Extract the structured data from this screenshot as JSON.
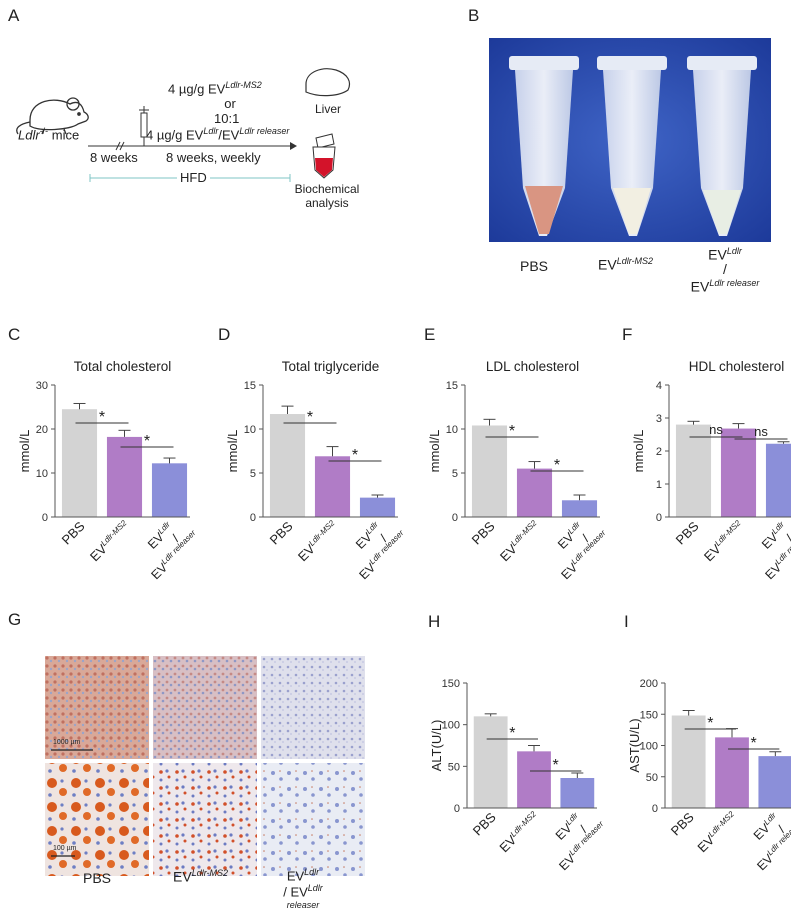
{
  "panels": {
    "A": {
      "label": "A",
      "mouse_text_prefix": "Ldlr",
      "mouse_text_sup": "-/-",
      "mouse_text_suffix": " mice",
      "eight_weeks": "8 weeks",
      "dose_line1": "4 µg/g EV",
      "dose_line1_sup": "Ldlr-MS2",
      "or": "or",
      "ratio": "10:1",
      "dose_line3": "4 µg/g EV",
      "dose_line3_sup1": "Ldlr",
      "dose_line3_mid": "/EV",
      "dose_line3_sup2": "Ldlr releaser",
      "schedule": "8 weeks, weekly",
      "hfd": "HFD",
      "liver": "Liver",
      "biochem_line1": "Biochemical",
      "biochem_line2": "analysis"
    },
    "B": {
      "label": "B",
      "tube1": "PBS",
      "tube2_prefix": "EV",
      "tube2_sup": "Ldlr-MS2",
      "tube3_prefix": "EV",
      "tube3_sup": "Ldlr",
      "tube3_slash": "/",
      "tube3_bottom_prefix": "EV",
      "tube3_bottom_sup": "Ldlr releaser"
    },
    "G": {
      "label": "G",
      "scale_top": "1000 µm",
      "scale_bottom": "100 µm",
      "col1": "PBS",
      "col2_prefix": "EV",
      "col2_sup": "Ldlr-MS2",
      "col3_prefix": "EV",
      "col3_sup": "Ldlr",
      "col3_slash": "/",
      "col3_bottom_prefix": "EV",
      "col3_bottom_sup": "Ldlr releaser"
    }
  },
  "xcat": {
    "pbs": "PBS",
    "ev": "EV",
    "ms2": "Ldlr-MS2",
    "ldlr": "Ldlr",
    "slash": "/",
    "releaser": "Ldlr releaser"
  },
  "colors": {
    "pbs": "#d3d3d3",
    "ms2": "#b07cc6",
    "rel": "#8b8fd9",
    "axis": "#555555"
  },
  "chart_data": [
    {
      "id": "C",
      "type": "bar",
      "title": "Total cholesterol",
      "ylabel": "mmol/L",
      "ylim": [
        0,
        30
      ],
      "yticks": [
        0,
        10,
        20,
        30
      ],
      "categories": [
        "PBS",
        "EV Ldlr-MS2",
        "EV Ldlr / EV Ldlr releaser"
      ],
      "values": [
        24.5,
        18.2,
        12.2
      ],
      "errors": [
        1.3,
        1.5,
        1.2
      ],
      "annotations": [
        {
          "from": 0,
          "to": 1,
          "text": "*"
        },
        {
          "from": 1,
          "to": 2,
          "text": "*"
        }
      ]
    },
    {
      "id": "D",
      "type": "bar",
      "title": "Total triglyceride",
      "ylabel": "mmol/L",
      "ylim": [
        0,
        15
      ],
      "yticks": [
        0,
        5,
        10,
        15
      ],
      "categories": [
        "PBS",
        "EV Ldlr-MS2",
        "EV Ldlr / EV Ldlr releaser"
      ],
      "values": [
        11.7,
        6.9,
        2.2
      ],
      "errors": [
        0.9,
        1.1,
        0.3
      ],
      "annotations": [
        {
          "from": 0,
          "to": 1,
          "text": "*"
        },
        {
          "from": 1,
          "to": 2,
          "text": "*"
        }
      ]
    },
    {
      "id": "E",
      "type": "bar",
      "title": "LDL cholesterol",
      "ylabel": "mmol/L",
      "ylim": [
        0,
        15
      ],
      "yticks": [
        0,
        5,
        10,
        15
      ],
      "categories": [
        "PBS",
        "EV Ldlr-MS2",
        "EV Ldlr / EV Ldlr releaser"
      ],
      "values": [
        10.4,
        5.5,
        1.9
      ],
      "errors": [
        0.7,
        0.8,
        0.6
      ],
      "annotations": [
        {
          "from": 0,
          "to": 1,
          "text": "*"
        },
        {
          "from": 1,
          "to": 2,
          "text": "*"
        }
      ]
    },
    {
      "id": "F",
      "type": "bar",
      "title": "HDL cholesterol",
      "ylabel": "mmol/L",
      "ylim": [
        0,
        4
      ],
      "yticks": [
        0,
        1,
        2,
        3,
        4
      ],
      "categories": [
        "PBS",
        "EV Ldlr-MS2",
        "EV Ldlr / EV Ldlr releaser"
      ],
      "values": [
        2.8,
        2.68,
        2.22
      ],
      "errors": [
        0.1,
        0.15,
        0.06
      ],
      "annotations": [
        {
          "from": 0,
          "to": 1,
          "text": "ns"
        },
        {
          "from": 1,
          "to": 2,
          "text": "ns"
        }
      ]
    },
    {
      "id": "H",
      "type": "bar",
      "title": "",
      "ylabel": "ALT(U/L)",
      "ylim": [
        0,
        150
      ],
      "yticks": [
        0,
        50,
        100,
        150
      ],
      "categories": [
        "PBS",
        "EV Ldlr-MS2",
        "EV Ldlr / EV Ldlr releaser"
      ],
      "values": [
        110,
        68,
        36
      ],
      "errors": [
        3,
        7,
        6
      ],
      "annotations": [
        {
          "from": 0,
          "to": 1,
          "text": "*"
        },
        {
          "from": 1,
          "to": 2,
          "text": "*"
        }
      ]
    },
    {
      "id": "I",
      "type": "bar",
      "title": "",
      "ylabel": "AST(U/L)",
      "ylim": [
        0,
        200
      ],
      "yticks": [
        0,
        50,
        100,
        150,
        200
      ],
      "categories": [
        "PBS",
        "EV Ldlr-MS2",
        "EV Ldlr / EV Ldlr releaser"
      ],
      "values": [
        148,
        113,
        83
      ],
      "errors": [
        8,
        14,
        7
      ],
      "annotations": [
        {
          "from": 0,
          "to": 1,
          "text": "*"
        },
        {
          "from": 1,
          "to": 2,
          "text": "*"
        }
      ]
    }
  ]
}
